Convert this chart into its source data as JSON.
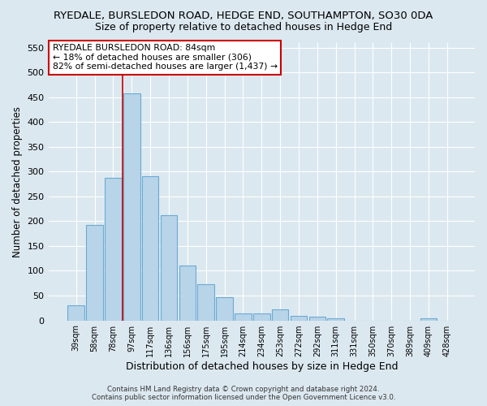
{
  "title": "RYEDALE, BURSLEDON ROAD, HEDGE END, SOUTHAMPTON, SO30 0DA",
  "subtitle": "Size of property relative to detached houses in Hedge End",
  "xlabel": "Distribution of detached houses by size in Hedge End",
  "ylabel": "Number of detached properties",
  "bar_labels": [
    "39sqm",
    "58sqm",
    "78sqm",
    "97sqm",
    "117sqm",
    "136sqm",
    "156sqm",
    "175sqm",
    "195sqm",
    "214sqm",
    "234sqm",
    "253sqm",
    "272sqm",
    "292sqm",
    "311sqm",
    "331sqm",
    "350sqm",
    "370sqm",
    "389sqm",
    "409sqm",
    "428sqm"
  ],
  "bar_values": [
    30,
    192,
    287,
    458,
    290,
    212,
    110,
    73,
    47,
    14,
    14,
    22,
    9,
    8,
    5,
    0,
    0,
    0,
    0,
    5,
    0
  ],
  "bar_color": "#b8d4e8",
  "bar_edgecolor": "#6aaad4",
  "vline_color": "#cc0000",
  "ylim": [
    0,
    560
  ],
  "yticks": [
    0,
    50,
    100,
    150,
    200,
    250,
    300,
    350,
    400,
    450,
    500,
    550
  ],
  "annotation_title": "RYEDALE BURSLEDON ROAD: 84sqm",
  "annotation_line1": "← 18% of detached houses are smaller (306)",
  "annotation_line2": "82% of semi-detached houses are larger (1,437) →",
  "annotation_box_facecolor": "#ffffff",
  "annotation_box_edgecolor": "#cc0000",
  "footer1": "Contains HM Land Registry data © Crown copyright and database right 2024.",
  "footer2": "Contains public sector information licensed under the Open Government Licence v3.0.",
  "background_color": "#dce8f0",
  "grid_color": "#ffffff",
  "title_fontsize": 9.5,
  "subtitle_fontsize": 9
}
